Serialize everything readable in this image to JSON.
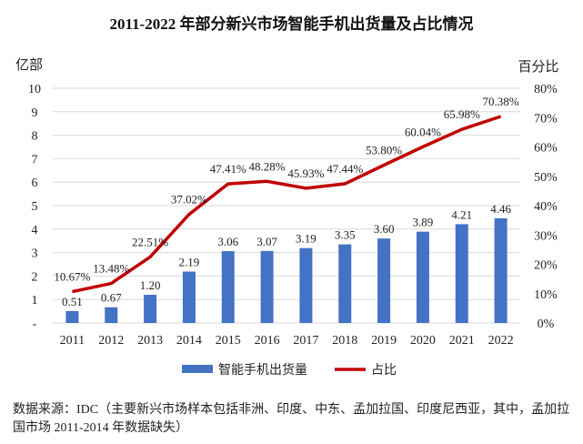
{
  "chart_data": {
    "type": "bar+line",
    "title": "2011-2022 年部分新兴市场智能手机出货量及占比情况",
    "ylabel_left": "亿部",
    "ylabel_right": "百分比",
    "categories": [
      "2011",
      "2012",
      "2013",
      "2014",
      "2015",
      "2016",
      "2017",
      "2018",
      "2019",
      "2020",
      "2021",
      "2022"
    ],
    "ylim_left": [
      0,
      10
    ],
    "yticks_left": [
      "-",
      "1",
      "2",
      "3",
      "4",
      "5",
      "6",
      "7",
      "8",
      "9",
      "10"
    ],
    "ylim_right": [
      0,
      80
    ],
    "yticks_right": [
      "0%",
      "10%",
      "20%",
      "30%",
      "40%",
      "50%",
      "60%",
      "70%",
      "80%"
    ],
    "grid": true,
    "legend_placement": "bottom",
    "series": [
      {
        "name": "智能手机出货量",
        "type": "bar",
        "axis": "left",
        "color": "#4472C4",
        "values": [
          0.51,
          0.67,
          1.2,
          2.19,
          3.06,
          3.07,
          3.19,
          3.35,
          3.6,
          3.89,
          4.21,
          4.46
        ],
        "labels": [
          "0.51",
          "0.67",
          "1.20",
          "2.19",
          "3.06",
          "3.07",
          "3.19",
          "3.35",
          "3.60",
          "3.89",
          "4.21",
          "4.46"
        ]
      },
      {
        "name": "占比",
        "type": "line",
        "axis": "right",
        "color": "#C00000",
        "values": [
          10.67,
          13.48,
          22.51,
          37.02,
          47.41,
          48.28,
          45.93,
          47.44,
          53.8,
          60.04,
          65.98,
          70.38
        ],
        "labels": [
          "10.67%",
          "13.48%",
          "22.51%",
          "37.02%",
          "47.41%",
          "48.28%",
          "45.93%",
          "47.44%",
          "53.80%",
          "60.04%",
          "65.98%",
          "70.38%"
        ]
      }
    ]
  },
  "note": "数据来源：IDC（主要新兴市场样本包括非洲、印度、中东、孟加拉国、印度尼西亚，其中，孟加拉国市场 2011-2014 年数据缺失）"
}
